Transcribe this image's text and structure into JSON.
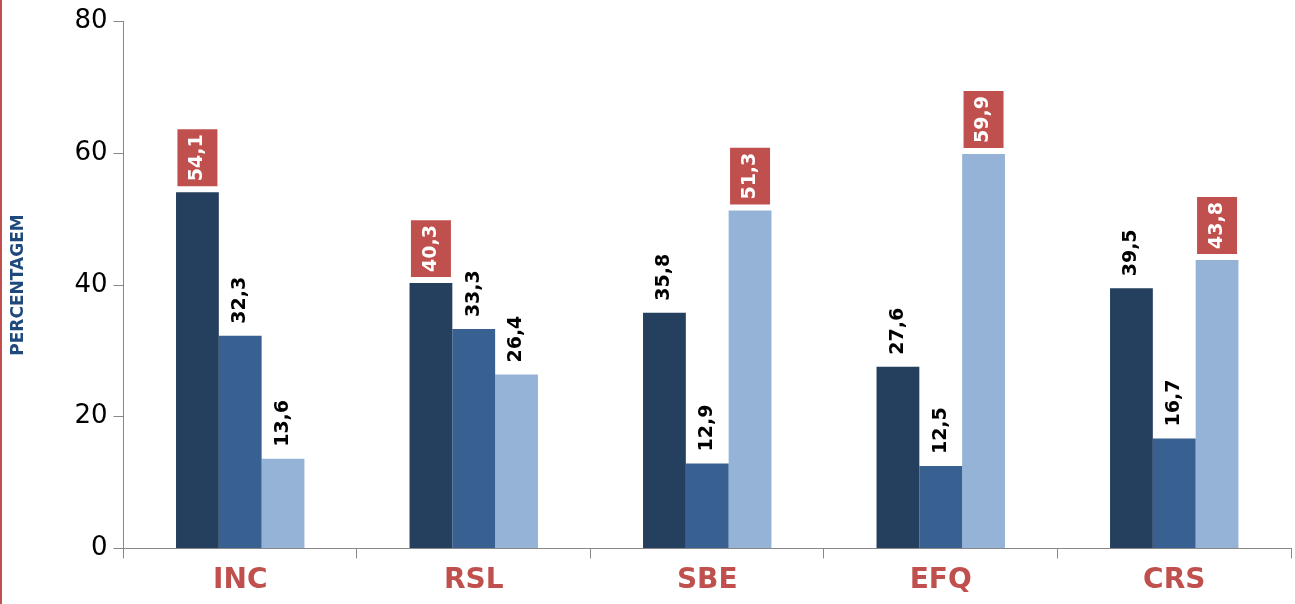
{
  "chart_data": {
    "type": "bar",
    "ylabel": "PERCENTAGEM",
    "categories": [
      "INC",
      "RSL",
      "SBE",
      "EFQ",
      "CRS"
    ],
    "series": [
      {
        "color": "#253f5f",
        "values": [
          54.1,
          40.3,
          35.8,
          27.6,
          39.5
        ],
        "value_labels": [
          "54,1",
          "40,3",
          "35,8",
          "27,6",
          "39,5"
        ]
      },
      {
        "color": "#386192",
        "values": [
          32.3,
          33.3,
          12.9,
          12.5,
          16.7
        ],
        "value_labels": [
          "32,3",
          "33,3",
          "12,9",
          "12,5",
          "16,7"
        ]
      },
      {
        "color": "#95b3d7",
        "values": [
          13.6,
          26.4,
          51.3,
          59.9,
          43.8
        ],
        "value_labels": [
          "13,6",
          "26,4",
          "51,3",
          "59,9",
          "43,8"
        ]
      }
    ],
    "ylim": [
      0,
      80
    ],
    "yticks": [
      0,
      20,
      40,
      60,
      80
    ],
    "grid": false,
    "legend": false
  }
}
